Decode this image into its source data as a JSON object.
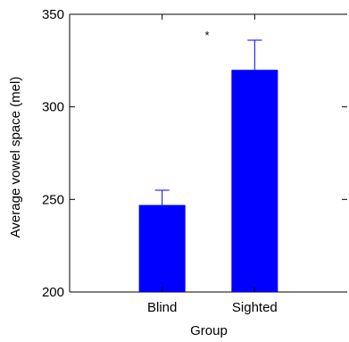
{
  "chart_data": {
    "type": "bar",
    "title": "",
    "xlabel": "Group",
    "ylabel": "Average vowel space (mel)",
    "categories": [
      "Blind",
      "Sighted"
    ],
    "values": [
      247,
      320
    ],
    "error_bars": [
      8,
      16
    ],
    "ylim": [
      200,
      350
    ],
    "yticks": [
      200,
      250,
      300,
      350
    ],
    "bar_color": "#0000ff",
    "errorbar_color": "#0000ff",
    "axis_color": "#000000",
    "grid": false,
    "legend": "none",
    "annotation": "*"
  }
}
